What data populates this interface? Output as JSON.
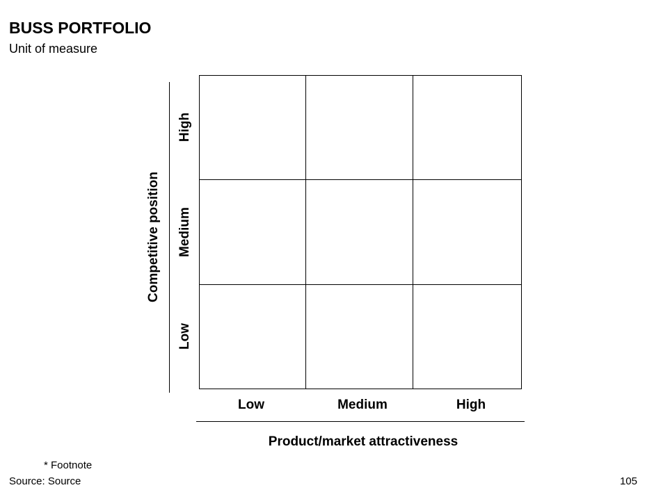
{
  "title": "BUSS PORTFOLIO",
  "subtitle": "Unit of measure",
  "matrix": {
    "x_axis": {
      "label": "Product/market attractiveness",
      "ticks": [
        "Low",
        "Medium",
        "High"
      ]
    },
    "y_axis": {
      "label": "Competitive position",
      "ticks_top_to_bottom": [
        "High",
        "Medium",
        "Low"
      ]
    },
    "rows": 3,
    "cols": 3
  },
  "footnote": "* Footnote",
  "source": "Source: Source",
  "page_number": "105"
}
